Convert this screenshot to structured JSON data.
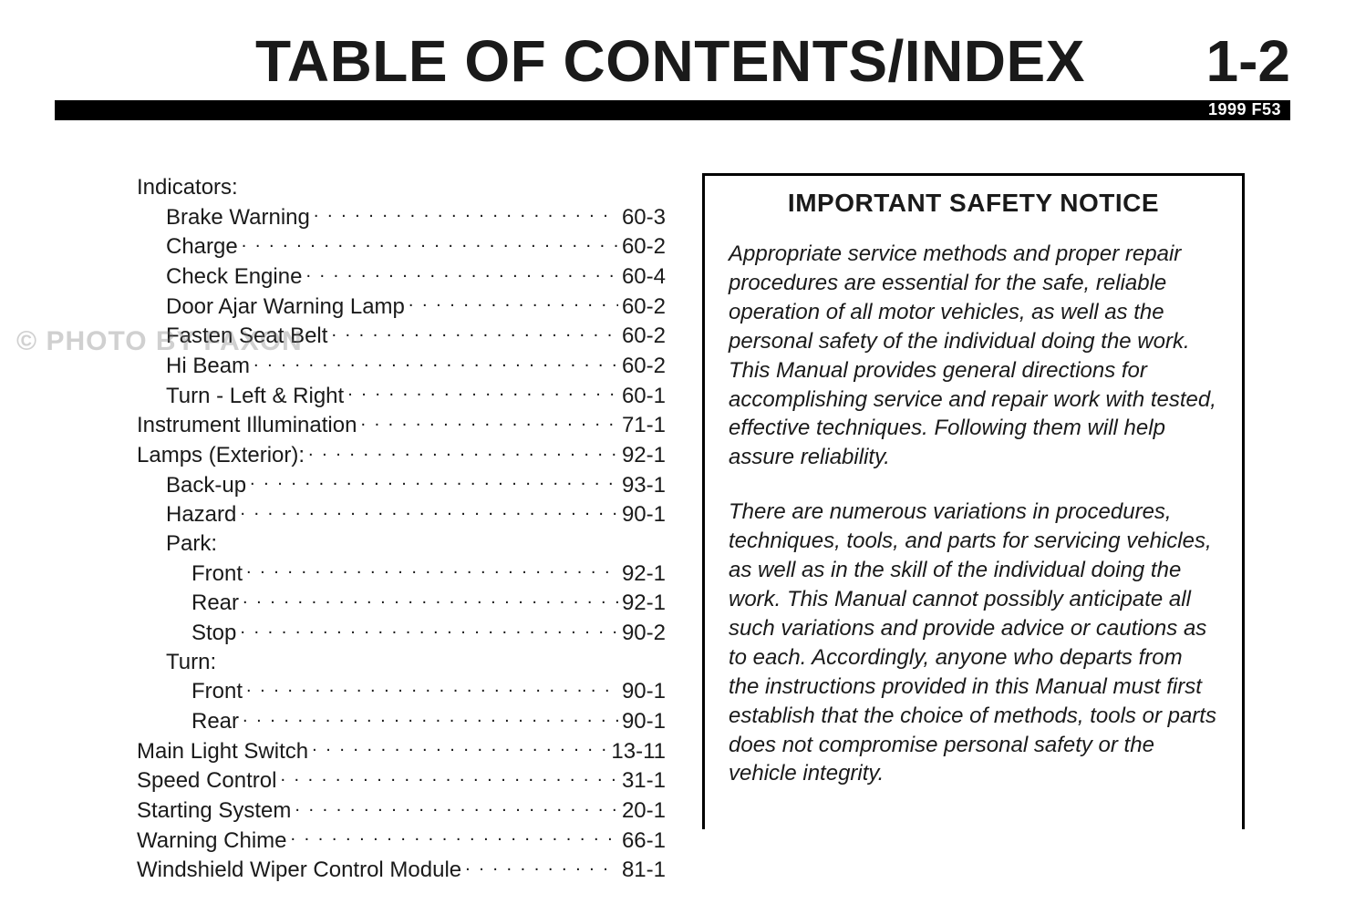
{
  "header": {
    "title": "TABLE OF CONTENTS/INDEX",
    "page_number": "1-2",
    "model_label": "1999 F53"
  },
  "watermark": "© PHOTO BY FAXON",
  "toc": [
    {
      "label": "Indicators:",
      "page": "",
      "indent": 0,
      "leader": false
    },
    {
      "label": "Brake Warning",
      "page": "60-3",
      "indent": 1,
      "leader": true
    },
    {
      "label": "Charge",
      "page": "60-2",
      "indent": 1,
      "leader": true
    },
    {
      "label": "Check Engine",
      "page": "60-4",
      "indent": 1,
      "leader": true
    },
    {
      "label": "Door Ajar Warning Lamp",
      "page": "60-2",
      "indent": 1,
      "leader": true
    },
    {
      "label": "Fasten Seat Belt",
      "page": "60-2",
      "indent": 1,
      "leader": true
    },
    {
      "label": "Hi Beam",
      "page": "60-2",
      "indent": 1,
      "leader": true
    },
    {
      "label": "Turn - Left & Right",
      "page": "60-1",
      "indent": 1,
      "leader": true
    },
    {
      "label": "Instrument Illumination",
      "page": "71-1",
      "indent": 0,
      "leader": true
    },
    {
      "label": "Lamps (Exterior):",
      "page": "92-1",
      "indent": 0,
      "leader": true
    },
    {
      "label": "Back-up",
      "page": "93-1",
      "indent": 1,
      "leader": true
    },
    {
      "label": "Hazard",
      "page": "90-1",
      "indent": 1,
      "leader": true
    },
    {
      "label": "Park:",
      "page": "",
      "indent": 1,
      "leader": false
    },
    {
      "label": "Front",
      "page": "92-1",
      "indent": 2,
      "leader": true
    },
    {
      "label": "Rear",
      "page": "92-1",
      "indent": 2,
      "leader": true
    },
    {
      "label": "Stop",
      "page": "90-2",
      "indent": 2,
      "leader": true
    },
    {
      "label": "Turn:",
      "page": "",
      "indent": 1,
      "leader": false
    },
    {
      "label": "Front",
      "page": "90-1",
      "indent": 2,
      "leader": true
    },
    {
      "label": "Rear",
      "page": "90-1",
      "indent": 2,
      "leader": true
    },
    {
      "label": "Main Light Switch",
      "page": "13-11",
      "indent": 0,
      "leader": true
    },
    {
      "label": "Speed Control",
      "page": "31-1",
      "indent": 0,
      "leader": true
    },
    {
      "label": "Starting System",
      "page": "20-1",
      "indent": 0,
      "leader": true
    },
    {
      "label": "Warning Chime",
      "page": "66-1",
      "indent": 0,
      "leader": true
    },
    {
      "label": "Windshield Wiper Control Module",
      "page": "81-1",
      "indent": 0,
      "leader": true
    }
  ],
  "notice": {
    "title": "IMPORTANT SAFETY NOTICE",
    "para1": "Appropriate service methods and proper repair procedures are essential for the safe, reliable operation of all motor vehicles, as well as the personal safety of the individual doing the work. This Manual provides general directions for accomplishing service and repair work with tested, effective techniques. Following them will help assure reliability.",
    "para2": "There are numerous variations in procedures, techniques, tools, and parts for servicing vehicles, as well as in the skill of the individual doing the work. This Manual cannot possibly anticipate all such variations and provide advice or cautions as to each. Accordingly, anyone who departs from the instructions provided in this Manual must first establish that the choice of methods, tools or parts does not compromise personal safety or the vehicle integrity."
  }
}
